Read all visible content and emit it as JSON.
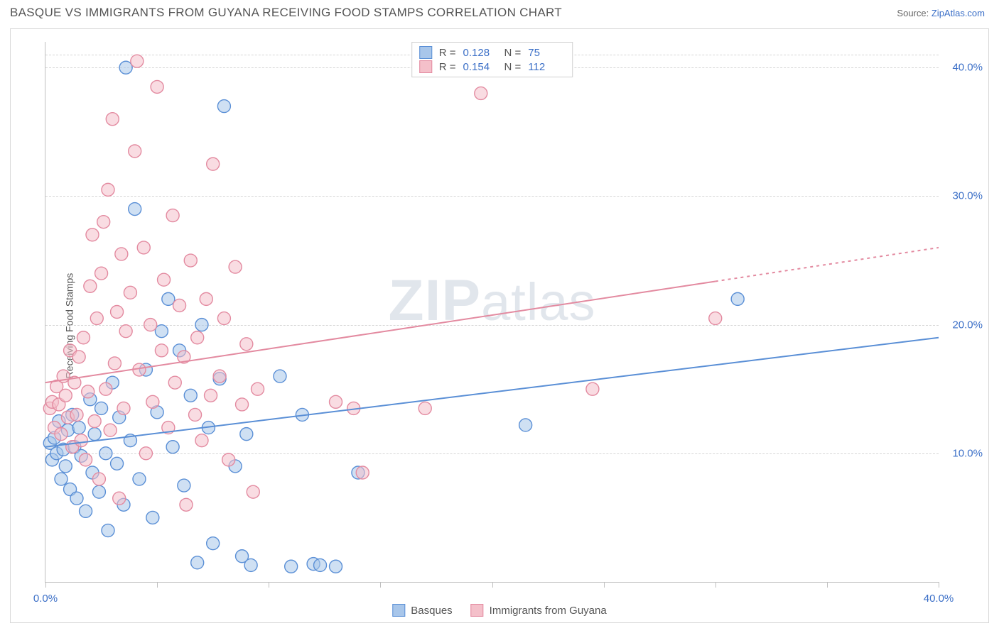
{
  "header": {
    "title": "BASQUE VS IMMIGRANTS FROM GUYANA RECEIVING FOOD STAMPS CORRELATION CHART",
    "source_label": "Source:",
    "source_link": "ZipAtlas.com"
  },
  "chart": {
    "type": "scatter",
    "ylabel": "Receiving Food Stamps",
    "watermark": "ZIPatlas",
    "background_color": "#ffffff",
    "grid_color": "#d5d5d5",
    "axis_color": "#bfbfbf",
    "tick_label_color": "#3b6fc7",
    "xlim": [
      0,
      40
    ],
    "ylim": [
      0,
      42
    ],
    "x_ticks": [
      0,
      5,
      10,
      15,
      20,
      25,
      30,
      35,
      40
    ],
    "x_tick_labels": {
      "0": "0.0%",
      "40": "40.0%"
    },
    "y_ticks": [
      10,
      20,
      30,
      40
    ],
    "y_tick_labels": {
      "10": "10.0%",
      "20": "20.0%",
      "30": "30.0%",
      "40": "40.0%"
    },
    "marker_radius": 9,
    "marker_stroke_width": 1.4,
    "trend_line_width": 2,
    "series": [
      {
        "name": "Basques",
        "fill_color": "#a8c6ea",
        "stroke_color": "#5a8fd6",
        "fill_opacity": 0.55,
        "R": "0.128",
        "N": "75",
        "trend": {
          "x1": 0,
          "y1": 10.5,
          "x2": 40,
          "y2": 19.0,
          "dash_from_x": null
        },
        "points": [
          [
            0.2,
            10.8
          ],
          [
            0.3,
            9.5
          ],
          [
            0.4,
            11.2
          ],
          [
            0.5,
            10.0
          ],
          [
            0.6,
            12.5
          ],
          [
            0.7,
            8.0
          ],
          [
            0.8,
            10.3
          ],
          [
            0.9,
            9.0
          ],
          [
            1.0,
            11.8
          ],
          [
            1.1,
            7.2
          ],
          [
            1.2,
            13.0
          ],
          [
            1.3,
            10.5
          ],
          [
            1.4,
            6.5
          ],
          [
            1.5,
            12.0
          ],
          [
            1.6,
            9.8
          ],
          [
            1.8,
            5.5
          ],
          [
            2.0,
            14.2
          ],
          [
            2.1,
            8.5
          ],
          [
            2.2,
            11.5
          ],
          [
            2.4,
            7.0
          ],
          [
            2.5,
            13.5
          ],
          [
            2.7,
            10.0
          ],
          [
            2.8,
            4.0
          ],
          [
            3.0,
            15.5
          ],
          [
            3.2,
            9.2
          ],
          [
            3.3,
            12.8
          ],
          [
            3.5,
            6.0
          ],
          [
            3.6,
            40.0
          ],
          [
            3.8,
            11.0
          ],
          [
            4.0,
            29.0
          ],
          [
            4.2,
            8.0
          ],
          [
            4.5,
            16.5
          ],
          [
            4.8,
            5.0
          ],
          [
            5.0,
            13.2
          ],
          [
            5.2,
            19.5
          ],
          [
            5.5,
            22.0
          ],
          [
            5.7,
            10.5
          ],
          [
            6.0,
            18.0
          ],
          [
            6.2,
            7.5
          ],
          [
            6.5,
            14.5
          ],
          [
            6.8,
            1.5
          ],
          [
            7.0,
            20.0
          ],
          [
            7.3,
            12.0
          ],
          [
            7.5,
            3.0
          ],
          [
            7.8,
            15.8
          ],
          [
            8.0,
            37.0
          ],
          [
            8.5,
            9.0
          ],
          [
            8.8,
            2.0
          ],
          [
            9.0,
            11.5
          ],
          [
            9.2,
            1.3
          ],
          [
            10.5,
            16.0
          ],
          [
            11.0,
            1.2
          ],
          [
            11.5,
            13.0
          ],
          [
            12.0,
            1.4
          ],
          [
            12.3,
            1.3
          ],
          [
            13.0,
            1.2
          ],
          [
            14.0,
            8.5
          ],
          [
            21.5,
            12.2
          ],
          [
            31.0,
            22.0
          ]
        ]
      },
      {
        "name": "Immigrants from Guyana",
        "fill_color": "#f4c0ca",
        "stroke_color": "#e38aa0",
        "fill_opacity": 0.55,
        "R": "0.154",
        "N": "112",
        "trend": {
          "x1": 0,
          "y1": 15.5,
          "x2": 40,
          "y2": 26.0,
          "dash_from_x": 30
        },
        "points": [
          [
            0.2,
            13.5
          ],
          [
            0.3,
            14.0
          ],
          [
            0.4,
            12.0
          ],
          [
            0.5,
            15.2
          ],
          [
            0.6,
            13.8
          ],
          [
            0.7,
            11.5
          ],
          [
            0.8,
            16.0
          ],
          [
            0.9,
            14.5
          ],
          [
            1.0,
            12.8
          ],
          [
            1.1,
            18.0
          ],
          [
            1.2,
            10.5
          ],
          [
            1.3,
            15.5
          ],
          [
            1.4,
            13.0
          ],
          [
            1.5,
            17.5
          ],
          [
            1.6,
            11.0
          ],
          [
            1.7,
            19.0
          ],
          [
            1.8,
            9.5
          ],
          [
            1.9,
            14.8
          ],
          [
            2.0,
            23.0
          ],
          [
            2.1,
            27.0
          ],
          [
            2.2,
            12.5
          ],
          [
            2.3,
            20.5
          ],
          [
            2.4,
            8.0
          ],
          [
            2.5,
            24.0
          ],
          [
            2.6,
            28.0
          ],
          [
            2.7,
            15.0
          ],
          [
            2.8,
            30.5
          ],
          [
            2.9,
            11.8
          ],
          [
            3.0,
            36.0
          ],
          [
            3.1,
            17.0
          ],
          [
            3.2,
            21.0
          ],
          [
            3.3,
            6.5
          ],
          [
            3.4,
            25.5
          ],
          [
            3.5,
            13.5
          ],
          [
            3.6,
            19.5
          ],
          [
            3.8,
            22.5
          ],
          [
            4.0,
            33.5
          ],
          [
            4.1,
            40.5
          ],
          [
            4.2,
            16.5
          ],
          [
            4.4,
            26.0
          ],
          [
            4.5,
            10.0
          ],
          [
            4.7,
            20.0
          ],
          [
            4.8,
            14.0
          ],
          [
            5.0,
            38.5
          ],
          [
            5.2,
            18.0
          ],
          [
            5.3,
            23.5
          ],
          [
            5.5,
            12.0
          ],
          [
            5.7,
            28.5
          ],
          [
            5.8,
            15.5
          ],
          [
            6.0,
            21.5
          ],
          [
            6.2,
            17.5
          ],
          [
            6.3,
            6.0
          ],
          [
            6.5,
            25.0
          ],
          [
            6.7,
            13.0
          ],
          [
            6.8,
            19.0
          ],
          [
            7.0,
            11.0
          ],
          [
            7.2,
            22.0
          ],
          [
            7.4,
            14.5
          ],
          [
            7.5,
            32.5
          ],
          [
            7.8,
            16.0
          ],
          [
            8.0,
            20.5
          ],
          [
            8.2,
            9.5
          ],
          [
            8.5,
            24.5
          ],
          [
            8.8,
            13.8
          ],
          [
            9.0,
            18.5
          ],
          [
            9.3,
            7.0
          ],
          [
            9.5,
            15.0
          ],
          [
            13.0,
            14.0
          ],
          [
            13.8,
            13.5
          ],
          [
            14.2,
            8.5
          ],
          [
            17.0,
            13.5
          ],
          [
            19.5,
            38.0
          ],
          [
            24.5,
            15.0
          ],
          [
            30.0,
            20.5
          ]
        ]
      }
    ],
    "stats_labels": {
      "R": "R =",
      "N": "N ="
    },
    "legend_labels": [
      "Basques",
      "Immigrants from Guyana"
    ]
  }
}
